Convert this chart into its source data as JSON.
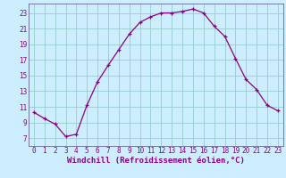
{
  "x": [
    0,
    1,
    2,
    3,
    4,
    5,
    6,
    7,
    8,
    9,
    10,
    11,
    12,
    13,
    14,
    15,
    16,
    17,
    18,
    19,
    20,
    21,
    22,
    23
  ],
  "y": [
    10.3,
    9.5,
    8.8,
    7.2,
    7.5,
    11.2,
    14.2,
    16.3,
    18.3,
    20.3,
    21.8,
    22.5,
    23.0,
    23.0,
    23.2,
    23.5,
    23.0,
    21.3,
    20.0,
    17.2,
    14.5,
    13.2,
    11.2,
    10.5
  ],
  "line_color": "#8B008B",
  "marker": "+",
  "marker_size": 3,
  "bg_color": "#cceeff",
  "grid_color": "#99cccc",
  "xlabel": "Windchill (Refroidissement éolien,°C)",
  "xlabel_color": "#8B008B",
  "ylabel_ticks": [
    7,
    9,
    11,
    13,
    15,
    17,
    19,
    21,
    23
  ],
  "xlim": [
    -0.5,
    23.5
  ],
  "ylim": [
    6.0,
    24.2
  ],
  "xticks": [
    0,
    1,
    2,
    3,
    4,
    5,
    6,
    7,
    8,
    9,
    10,
    11,
    12,
    13,
    14,
    15,
    16,
    17,
    18,
    19,
    20,
    21,
    22,
    23
  ],
  "tick_color": "#8B008B",
  "tick_fontsize": 5.5,
  "xlabel_fontsize": 6.5,
  "line_width": 0.9
}
